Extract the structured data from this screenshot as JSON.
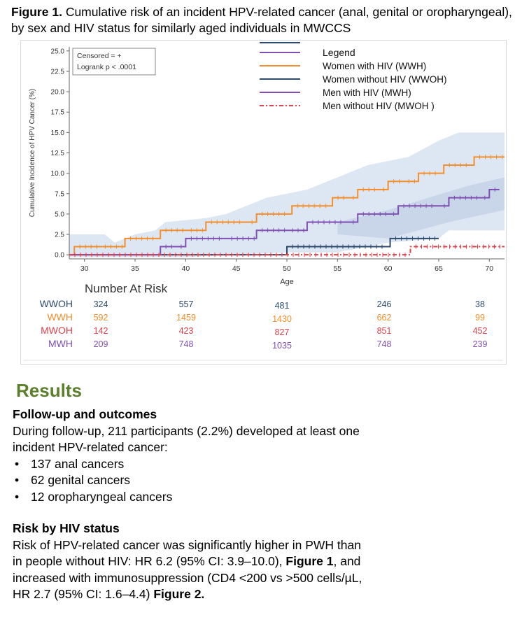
{
  "figure": {
    "label": "Figure 1.",
    "caption_text": "Cumulative risk of an incident HPV-related cancer (anal, genital or oropharyngeal), by sex and HIV status for similarly aged individuals in MWCCS"
  },
  "chart_data": {
    "type": "line",
    "subtype": "step",
    "xlabel": "Age",
    "ylabel": "Cumulative Incidence of HPV Cancer (%)",
    "xlim": [
      28.5,
      71.5
    ],
    "ylim": [
      -0.5,
      25.5
    ],
    "xticks": [
      30,
      35,
      40,
      45,
      50,
      55,
      60,
      65,
      70
    ],
    "yticks": [
      "0.0",
      "2.5",
      "5.0",
      "7.5",
      "10.0",
      "12.5",
      "15.0",
      "17.5",
      "20.0",
      "22.5",
      "25.0"
    ],
    "grid": false,
    "stats_box": [
      "Censored = +",
      "Logrank p < .0001"
    ],
    "legend_title": "Legend",
    "legend_position": "top-right",
    "series": [
      {
        "name": "Women with HIV (WWH)",
        "color": "#f28e2b",
        "dash": "solid",
        "points": [
          [
            28.5,
            0
          ],
          [
            29,
            1
          ],
          [
            31.5,
            1
          ],
          [
            34,
            2
          ],
          [
            37,
            2
          ],
          [
            37.5,
            3
          ],
          [
            40,
            3
          ],
          [
            42,
            4
          ],
          [
            46,
            4
          ],
          [
            47,
            5
          ],
          [
            50,
            5
          ],
          [
            50.5,
            6
          ],
          [
            54,
            6
          ],
          [
            54.5,
            7
          ],
          [
            56,
            7
          ],
          [
            57,
            8
          ],
          [
            59,
            8
          ],
          [
            60,
            9
          ],
          [
            61.5,
            9
          ],
          [
            63,
            10
          ],
          [
            65,
            10
          ],
          [
            65.5,
            11
          ],
          [
            68,
            11
          ],
          [
            68.5,
            12
          ],
          [
            71.5,
            12
          ]
        ]
      },
      {
        "name": "Women without HIV (WWOH)",
        "color": "#2c4a6e",
        "dash": "solid",
        "points": [
          [
            28.5,
            0
          ],
          [
            49.5,
            0
          ],
          [
            50,
            1
          ],
          [
            60,
            1
          ],
          [
            60.2,
            2
          ],
          [
            65,
            2
          ]
        ]
      },
      {
        "name": "Men with HIV (MWH)",
        "color": "#7f4fb2",
        "dash": "solid",
        "points": [
          [
            28.5,
            0
          ],
          [
            37,
            0
          ],
          [
            37.5,
            1
          ],
          [
            39,
            1
          ],
          [
            40,
            2
          ],
          [
            44,
            2
          ],
          [
            47,
            3
          ],
          [
            50,
            3
          ],
          [
            52,
            4
          ],
          [
            56,
            4
          ],
          [
            57,
            5
          ],
          [
            60,
            5
          ],
          [
            61,
            6
          ],
          [
            65,
            6
          ],
          [
            66,
            7
          ],
          [
            69,
            7
          ],
          [
            70,
            8
          ],
          [
            71,
            8
          ]
        ]
      },
      {
        "name": "Men without HIV (MWOH )",
        "color": "#e0404a",
        "dash": "dashdot",
        "points": [
          [
            28.5,
            0
          ],
          [
            62,
            0
          ],
          [
            62.2,
            1
          ],
          [
            71.5,
            1
          ]
        ]
      }
    ],
    "number_at_risk": {
      "title": "Number At Risk",
      "rows": [
        {
          "label": "WWOH",
          "color": "#2c4a6e",
          "values": [
            "324",
            "557",
            "481",
            "246",
            "38"
          ]
        },
        {
          "label": "WWH",
          "color": "#f28e2b",
          "values": [
            "592",
            "1459",
            "1430",
            "662",
            "99"
          ]
        },
        {
          "label": "MWOH",
          "color": "#e0404a",
          "values": [
            "142",
            "423",
            "827",
            "851",
            "452"
          ]
        },
        {
          "label": "MWH",
          "color": "#7f4fb2",
          "values": [
            "209",
            "748",
            "1035",
            "748",
            "239"
          ]
        }
      ]
    }
  },
  "results": {
    "heading": "Results",
    "followup_heading": "Follow-up and outcomes",
    "followup_text": "During follow-up, 211 participants (2.2%) developed at least one incident HPV-related cancer:",
    "bullets": [
      "137 anal cancers",
      "62 genital cancers",
      "12 oropharyngeal cancers"
    ],
    "risk_heading": "Risk by HIV status",
    "risk_text_1": "Risk of HPV-related cancer was significantly higher in PWH than in people without HIV: HR 6.2 (95% CI: 3.9–10.0), ",
    "risk_fig1": "Figure 1",
    "risk_text_2": ", and increased with immunosuppression (CD4 <200 vs >500 cells/µL, HR 2.7 (95% CI: 1.6–4.4) ",
    "risk_fig2": "Figure 2."
  }
}
